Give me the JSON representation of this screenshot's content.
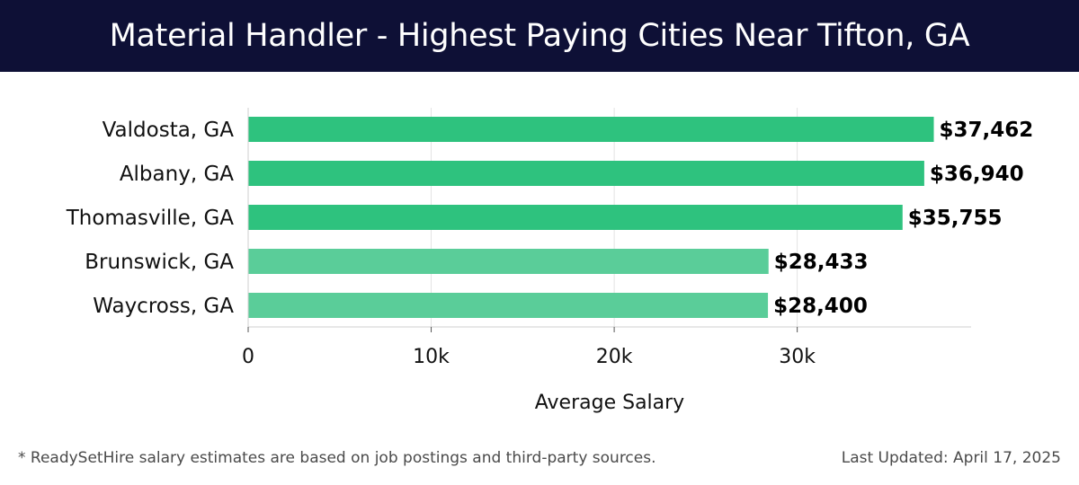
{
  "header": {
    "title": "Material Handler - Highest Paying Cities Near Tifton, GA",
    "background": "#0e1036"
  },
  "chart_data": {
    "type": "bar",
    "orientation": "horizontal",
    "categories": [
      "Valdosta, GA",
      "Albany, GA",
      "Thomasville, GA",
      "Brunswick, GA",
      "Waycross, GA"
    ],
    "values": [
      37462,
      36940,
      35755,
      28433,
      28400
    ],
    "value_labels": [
      "$37,462",
      "$36,940",
      "$35,755",
      "$28,433",
      "$28,400"
    ],
    "bar_colors": [
      "#2ec27e",
      "#2ec27e",
      "#2ec27e",
      "#5acd99",
      "#5acd99"
    ],
    "xlabel": "Average Salary",
    "ylabel": "",
    "xlim": [
      0,
      39500
    ],
    "xticks": [
      0,
      10000,
      20000,
      30000
    ],
    "xtick_labels": [
      "0",
      "10k",
      "20k",
      "30k"
    ],
    "grid": "vertical"
  },
  "footer": {
    "note": "* ReadySetHire salary estimates are based on job postings and third-party sources.",
    "updated": "Last Updated: April 17, 2025"
  }
}
